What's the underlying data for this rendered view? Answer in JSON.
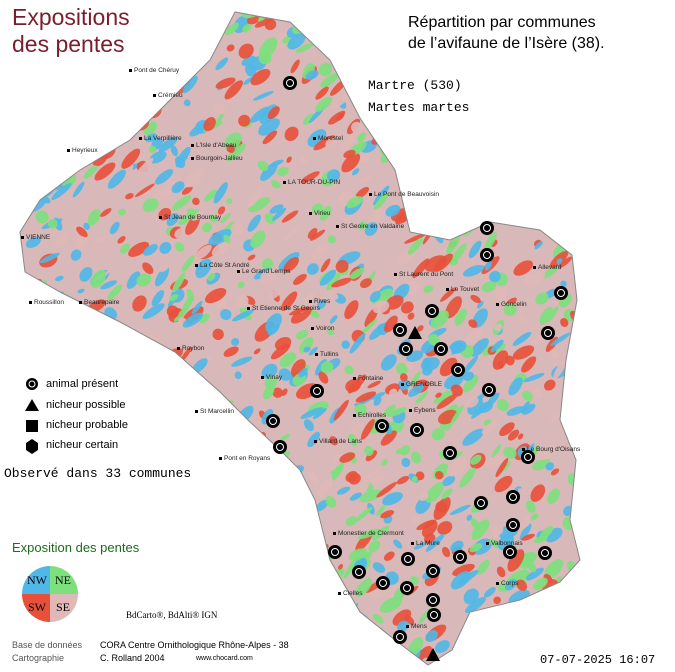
{
  "header": {
    "corner_title_line1": "Expositions",
    "corner_title_line2": "des pentes",
    "title_line1": "Répartition par communes",
    "title_line2": "de l’avifaune de l’Isère (38)."
  },
  "species": {
    "common": "Martre  (530)",
    "latin": "Martes martes"
  },
  "legend": {
    "items": [
      "animal présent",
      "nicheur possible",
      "nicheur probable",
      "nicheur certain"
    ],
    "observed": "Observé dans 33 communes"
  },
  "slopes": {
    "title": "Exposition des pentes",
    "nw": "NW",
    "ne": "NE",
    "sw": "SW",
    "se": "SE"
  },
  "places": [
    "Pont de Chéruy",
    "Crémieu",
    "Morestel",
    "Heyrieux",
    "La Verpillière",
    "L'Isle d'Abeau",
    "Bourgoin-Jallieu",
    "LA TOUR-DU-PIN",
    "Le Pont de Beauvoisin",
    "VIENNE",
    "St Jean de Bournay",
    "Virieu",
    "St Geoire en Valdaine",
    "La Côte St André",
    "Le Grand Lemps",
    "Roussillon",
    "Beaurepaire",
    "St Etienne de St Geoirs",
    "Rives",
    "Voiron",
    "Tullins",
    "Roybon",
    "Vinay",
    "St Marcellin",
    "Pont en Royans",
    "St Laurent du Pont",
    "Le Touvet",
    "Allevard",
    "Goncelin",
    "Fontaine",
    "GRENOBLE",
    "Echirolles",
    "Eybens",
    "Villard de Lans",
    "Le Bourg d'Oisans",
    "Monestier de Clermont",
    "La Mure",
    "Valbonnais",
    "Corps",
    "Clelles",
    "Mens"
  ],
  "footer": {
    "copyright": "BdCarto®, BdAlti® IGN",
    "db_label": "Base de données",
    "db_value": "CORA Centre Ornithologique Rhône-Alpes - 38",
    "carto_label": "Cartographie",
    "carto_value": "C. Rolland 2004",
    "site": "www.chocard.com",
    "timestamp": "07-07-2025 16:07"
  }
}
